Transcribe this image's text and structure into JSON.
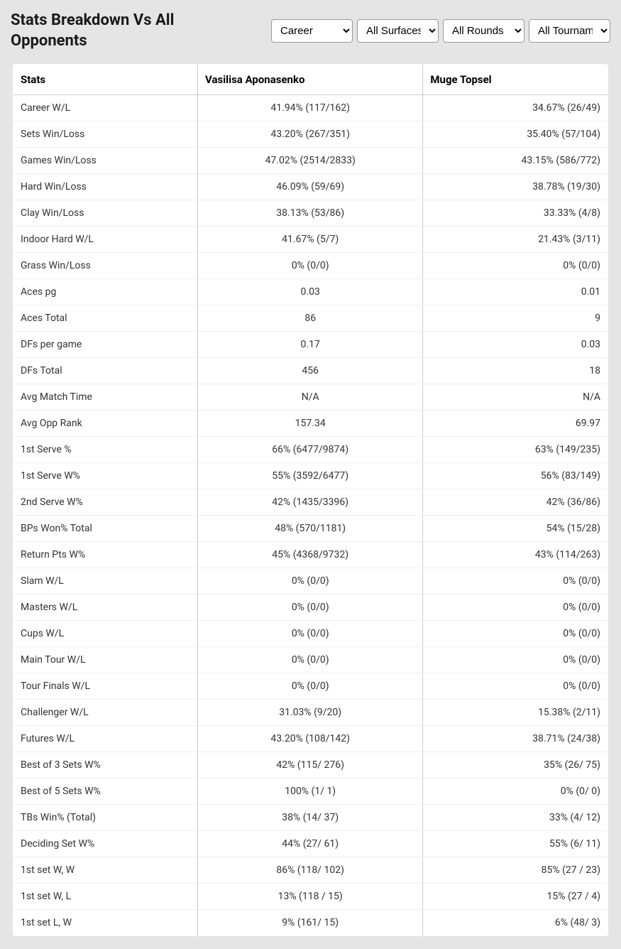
{
  "header": {
    "title": "Stats Breakdown Vs All Opponents"
  },
  "filters": {
    "career": "Career",
    "surface": "All Surfaces",
    "round": "All Rounds",
    "tournament": "All Tournaments"
  },
  "table": {
    "columns": [
      "Stats",
      "Vasilisa Aponasenko",
      "Muge Topsel"
    ],
    "rows": [
      {
        "stat": "Career W/L",
        "p1": "41.94% (117/162)",
        "p2": "34.67% (26/49)"
      },
      {
        "stat": "Sets Win/Loss",
        "p1": "43.20% (267/351)",
        "p2": "35.40% (57/104)"
      },
      {
        "stat": "Games Win/Loss",
        "p1": "47.02% (2514/2833)",
        "p2": "43.15% (586/772)"
      },
      {
        "stat": "Hard Win/Loss",
        "p1": "46.09% (59/69)",
        "p2": "38.78% (19/30)"
      },
      {
        "stat": "Clay Win/Loss",
        "p1": "38.13% (53/86)",
        "p2": "33.33% (4/8)"
      },
      {
        "stat": "Indoor Hard W/L",
        "p1": "41.67% (5/7)",
        "p2": "21.43% (3/11)"
      },
      {
        "stat": "Grass Win/Loss",
        "p1": "0% (0/0)",
        "p2": "0% (0/0)"
      },
      {
        "stat": "Aces pg",
        "p1": "0.03",
        "p2": "0.01"
      },
      {
        "stat": "Aces Total",
        "p1": "86",
        "p2": "9"
      },
      {
        "stat": "DFs per game",
        "p1": "0.17",
        "p2": "0.03"
      },
      {
        "stat": "DFs Total",
        "p1": "456",
        "p2": "18"
      },
      {
        "stat": "Avg Match Time",
        "p1": "N/A",
        "p2": "N/A"
      },
      {
        "stat": "Avg Opp Rank",
        "p1": "157.34",
        "p2": "69.97"
      },
      {
        "stat": "1st Serve %",
        "p1": "66% (6477/9874)",
        "p2": "63% (149/235)"
      },
      {
        "stat": "1st Serve W%",
        "p1": "55% (3592/6477)",
        "p2": "56% (83/149)"
      },
      {
        "stat": "2nd Serve W%",
        "p1": "42% (1435/3396)",
        "p2": "42% (36/86)"
      },
      {
        "stat": "BPs Won% Total",
        "p1": "48% (570/1181)",
        "p2": "54% (15/28)"
      },
      {
        "stat": "Return Pts W%",
        "p1": "45% (4368/9732)",
        "p2": "43% (114/263)"
      },
      {
        "stat": "Slam W/L",
        "p1": "0% (0/0)",
        "p2": "0% (0/0)"
      },
      {
        "stat": "Masters W/L",
        "p1": "0% (0/0)",
        "p2": "0% (0/0)"
      },
      {
        "stat": "Cups W/L",
        "p1": "0% (0/0)",
        "p2": "0% (0/0)"
      },
      {
        "stat": "Main Tour W/L",
        "p1": "0% (0/0)",
        "p2": "0% (0/0)"
      },
      {
        "stat": "Tour Finals W/L",
        "p1": "0% (0/0)",
        "p2": "0% (0/0)"
      },
      {
        "stat": "Challenger W/L",
        "p1": "31.03% (9/20)",
        "p2": "15.38% (2/11)"
      },
      {
        "stat": "Futures W/L",
        "p1": "43.20% (108/142)",
        "p2": "38.71% (24/38)"
      },
      {
        "stat": "Best of 3 Sets W%",
        "p1": "42% (115/ 276)",
        "p2": "35% (26/ 75)"
      },
      {
        "stat": "Best of 5 Sets W%",
        "p1": "100% (1/ 1)",
        "p2": "0% (0/ 0)"
      },
      {
        "stat": "TBs Win% (Total)",
        "p1": "38% (14/ 37)",
        "p2": "33% (4/ 12)"
      },
      {
        "stat": "Deciding Set W%",
        "p1": "44% (27/ 61)",
        "p2": "55% (6/ 11)"
      },
      {
        "stat": "1st set W, W",
        "p1": "86% (118/ 102)",
        "p2": "85% (27 / 23)"
      },
      {
        "stat": "1st set W, L",
        "p1": "13% (118 / 15)",
        "p2": "15% (27 / 4)"
      },
      {
        "stat": "1st set L, W",
        "p1": "9% (161/ 15)",
        "p2": "6% (48/ 3)"
      }
    ]
  }
}
